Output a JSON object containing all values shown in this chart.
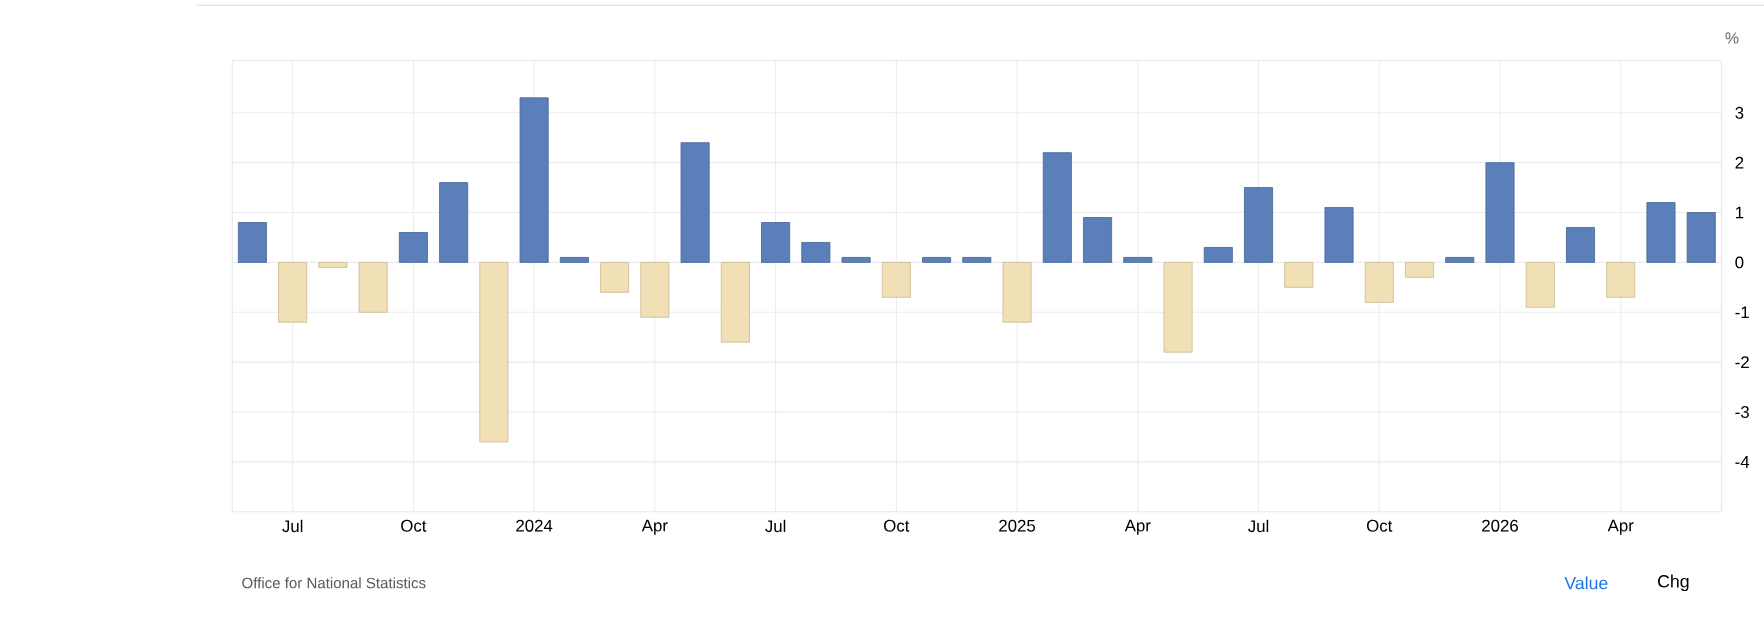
{
  "chart_data": {
    "type": "bar",
    "ylabel": "%",
    "categories": [
      null,
      "Jul",
      null,
      null,
      "Oct",
      null,
      null,
      "2024",
      null,
      null,
      "Apr",
      null,
      null,
      "Jul",
      null,
      null,
      "Oct",
      null,
      null,
      "2025",
      null,
      null,
      "Apr",
      null,
      null,
      "Jul",
      null,
      null,
      "Oct",
      null,
      null,
      "2026",
      null,
      null,
      "Apr",
      null,
      null
    ],
    "values": [
      0.8,
      -1.2,
      -0.1,
      -1.0,
      0.6,
      1.6,
      -3.6,
      3.3,
      0.1,
      -0.6,
      -1.1,
      2.4,
      -1.6,
      0.8,
      0.4,
      0.1,
      -0.7,
      0.1,
      0.1,
      -1.2,
      2.2,
      0.9,
      0.1,
      -1.8,
      0.3,
      1.5,
      -0.5,
      1.1,
      -0.8,
      -0.3,
      0.1,
      2.0,
      -0.9,
      0.7,
      -0.7,
      1.2,
      1.0
    ],
    "colors": [
      "#5b7fb8",
      "#f1e0b5",
      "#f1e0b5",
      "#f1e0b5",
      "#5b7fb8",
      "#5b7fb8",
      "#f1e0b5",
      "#5b7fb8",
      "#5b7fb8",
      "#f1e0b5",
      "#f1e0b5",
      "#5b7fb8",
      "#f1e0b5",
      "#5b7fb8",
      "#5b7fb8",
      "#5b7fb8",
      "#f1e0b5",
      "#5b7fb8",
      "#5b7fb8",
      "#f1e0b5",
      "#5b7fb8",
      "#5b7fb8",
      "#5b7fb8",
      "#f1e0b5",
      "#5b7fb8",
      "#5b7fb8",
      "#f1e0b5",
      "#5b7fb8",
      "#f1e0b5",
      "#f1e0b5",
      "#5b7fb8",
      "#5b7fb8",
      "#f1e0b5",
      "#5b7fb8",
      "#f1e0b5",
      "#5b7fb8",
      "#5b7fb8"
    ],
    "ylim": [
      -5,
      4.05
    ],
    "yticks": [
      -4,
      -3,
      -2,
      -1,
      0,
      1,
      2,
      3
    ],
    "grid": true,
    "annotations": [
      "Office for National Statistics",
      "Value",
      "Chg"
    ]
  }
}
